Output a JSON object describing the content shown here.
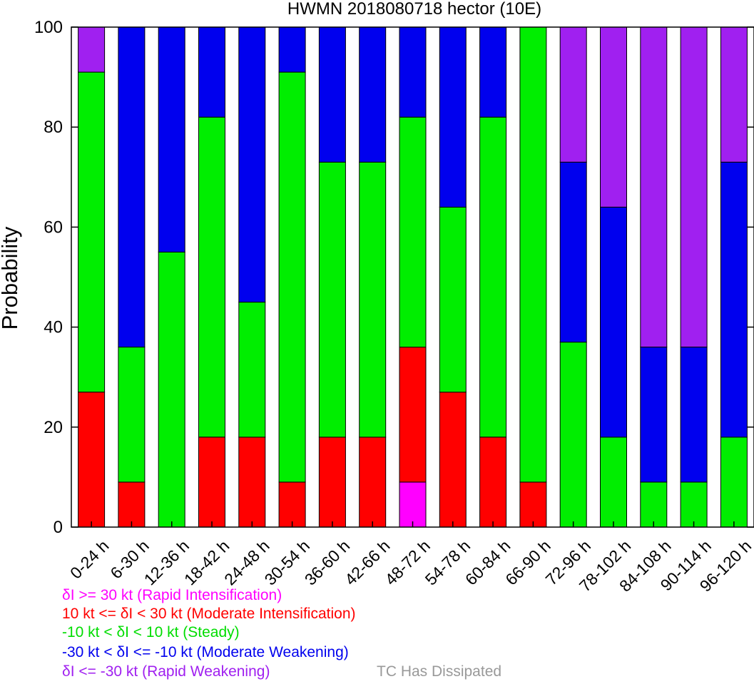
{
  "chart_data": {
    "type": "bar",
    "stacked": true,
    "title": "HWMN 2018080718 hector (10E)",
    "ylabel": "Probability",
    "ylim": [
      0,
      100
    ],
    "yticks": [
      "0",
      "20",
      "40",
      "60",
      "80",
      "100"
    ],
    "grid": false,
    "categories": [
      "0-24 h",
      "6-30 h",
      "12-36 h",
      "18-42 h",
      "24-48 h",
      "30-54 h",
      "36-60 h",
      "42-66 h",
      "48-72 h",
      "54-78 h",
      "60-84 h",
      "66-90 h",
      "72-96 h",
      "78-102 h",
      "84-108 h",
      "90-114 h",
      "96-120 h"
    ],
    "series": [
      {
        "name": "δI >= 30 kt (Rapid Intensification)",
        "color": "#ff00ff",
        "values": [
          0,
          0,
          0,
          0,
          0,
          0,
          0,
          0,
          9,
          0,
          0,
          0,
          0,
          0,
          0,
          0,
          0
        ]
      },
      {
        "name": "10 kt <= δI < 30 kt (Moderate Intensification)",
        "color": "#ff0000",
        "values": [
          27,
          9,
          0,
          18,
          18,
          9,
          18,
          18,
          27,
          27,
          18,
          9,
          0,
          0,
          0,
          0,
          0
        ]
      },
      {
        "name": "-10 kt < δI < 10 kt (Steady)",
        "color": "#00ee00",
        "values": [
          64,
          27,
          55,
          64,
          27,
          82,
          55,
          55,
          46,
          37,
          64,
          91,
          37,
          18,
          9,
          9,
          18
        ]
      },
      {
        "name": "-30 kt < δI <= -10 kt (Moderate Weakening)",
        "color": "#0000ee",
        "values": [
          0,
          64,
          45,
          18,
          55,
          9,
          27,
          27,
          18,
          36,
          18,
          0,
          36,
          46,
          27,
          27,
          55
        ]
      },
      {
        "name": "δI <= -30 kt (Rapid Weakening)",
        "color": "#a020f0",
        "values": [
          9,
          0,
          0,
          0,
          0,
          0,
          0,
          0,
          0,
          0,
          0,
          0,
          27,
          36,
          64,
          64,
          27
        ]
      },
      {
        "name": "TC Has Dissipated",
        "color": "#999999",
        "values": [
          0,
          0,
          0,
          0,
          0,
          0,
          0,
          0,
          0,
          0,
          0,
          0,
          0,
          0,
          0,
          0,
          0
        ]
      }
    ]
  }
}
